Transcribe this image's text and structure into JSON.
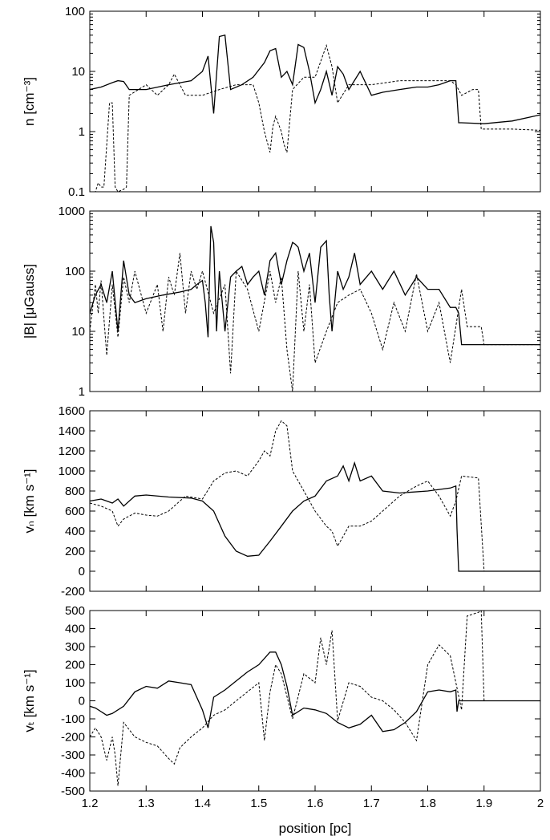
{
  "chart_data": [
    {
      "type": "line",
      "ylabel": "n [cm⁻³]",
      "yscale": "log",
      "ylim": [
        0.1,
        100
      ],
      "xlim": [
        1.2,
        2.0
      ],
      "yticks": [
        "0.1",
        "1",
        "10",
        "100"
      ],
      "grid": false,
      "series": [
        {
          "style": "solid",
          "x": [
            1.2,
            1.22,
            1.24,
            1.25,
            1.26,
            1.27,
            1.3,
            1.34,
            1.38,
            1.4,
            1.41,
            1.42,
            1.43,
            1.44,
            1.45,
            1.47,
            1.49,
            1.51,
            1.52,
            1.53,
            1.54,
            1.55,
            1.56,
            1.57,
            1.58,
            1.59,
            1.6,
            1.61,
            1.62,
            1.63,
            1.64,
            1.65,
            1.66,
            1.68,
            1.7,
            1.72,
            1.75,
            1.78,
            1.8,
            1.82,
            1.84,
            1.85,
            1.855,
            1.86,
            1.9,
            1.95,
            2.0
          ],
          "y": [
            5,
            5.5,
            6.5,
            7,
            6.8,
            5,
            5,
            6,
            7,
            10,
            18,
            2,
            38,
            40,
            5,
            6,
            8,
            14,
            22,
            24,
            8,
            10,
            6,
            28,
            25,
            10,
            3,
            5,
            10,
            4,
            12,
            9,
            5,
            10,
            4,
            4.5,
            5,
            5.5,
            5.5,
            6,
            7,
            7,
            1.4,
            1.4,
            1.35,
            1.5,
            1.9
          ]
        },
        {
          "style": "dashed",
          "x": [
            1.2,
            1.21,
            1.215,
            1.22,
            1.225,
            1.23,
            1.235,
            1.24,
            1.245,
            1.25,
            1.26,
            1.265,
            1.27,
            1.3,
            1.32,
            1.34,
            1.35,
            1.37,
            1.4,
            1.43,
            1.46,
            1.49,
            1.5,
            1.51,
            1.52,
            1.525,
            1.53,
            1.54,
            1.545,
            1.55,
            1.56,
            1.58,
            1.6,
            1.62,
            1.63,
            1.64,
            1.66,
            1.7,
            1.75,
            1.8,
            1.84,
            1.85,
            1.86,
            1.88,
            1.89,
            1.895,
            1.9,
            1.95,
            2.0
          ],
          "y": [
            0.1,
            0.1,
            0.14,
            0.12,
            0.12,
            0.6,
            3,
            3,
            0.12,
            0.1,
            0.11,
            0.12,
            4,
            6,
            4,
            6,
            9,
            4,
            4,
            5,
            6,
            6,
            3,
            1,
            0.45,
            1.2,
            1.8,
            1,
            0.6,
            0.45,
            5,
            8,
            8,
            27,
            12,
            3,
            6,
            6,
            7,
            7,
            7,
            6,
            4,
            5,
            5,
            1.1,
            1.1,
            1.1,
            1.05
          ]
        }
      ]
    },
    {
      "type": "line",
      "ylabel": "|B| [μGauss]",
      "yscale": "log",
      "ylim": [
        1,
        1000
      ],
      "xlim": [
        1.2,
        2.0
      ],
      "yticks": [
        "1",
        "10",
        "100",
        "1000"
      ],
      "grid": false,
      "series": [
        {
          "style": "solid",
          "x": [
            1.2,
            1.21,
            1.22,
            1.23,
            1.24,
            1.25,
            1.26,
            1.27,
            1.28,
            1.3,
            1.33,
            1.36,
            1.38,
            1.39,
            1.4,
            1.405,
            1.41,
            1.415,
            1.42,
            1.425,
            1.43,
            1.44,
            1.45,
            1.46,
            1.47,
            1.48,
            1.49,
            1.5,
            1.51,
            1.52,
            1.53,
            1.54,
            1.55,
            1.56,
            1.565,
            1.57,
            1.58,
            1.59,
            1.6,
            1.61,
            1.62,
            1.625,
            1.63,
            1.64,
            1.65,
            1.66,
            1.67,
            1.68,
            1.7,
            1.72,
            1.74,
            1.76,
            1.78,
            1.8,
            1.82,
            1.84,
            1.85,
            1.855,
            1.86,
            1.9,
            1.95,
            2.0
          ],
          "y": [
            20,
            40,
            60,
            30,
            100,
            10,
            150,
            40,
            30,
            35,
            40,
            45,
            50,
            60,
            70,
            30,
            8,
            560,
            300,
            10,
            100,
            10,
            80,
            100,
            120,
            60,
            80,
            100,
            40,
            150,
            200,
            60,
            150,
            300,
            280,
            250,
            100,
            200,
            30,
            250,
            320,
            40,
            10,
            100,
            50,
            80,
            200,
            60,
            100,
            50,
            100,
            40,
            80,
            50,
            50,
            25,
            25,
            20,
            6,
            6,
            6,
            6
          ]
        },
        {
          "style": "dashed",
          "x": [
            1.2,
            1.21,
            1.215,
            1.22,
            1.23,
            1.24,
            1.25,
            1.26,
            1.27,
            1.28,
            1.3,
            1.32,
            1.33,
            1.34,
            1.35,
            1.36,
            1.37,
            1.38,
            1.39,
            1.4,
            1.42,
            1.44,
            1.45,
            1.46,
            1.48,
            1.5,
            1.52,
            1.53,
            1.54,
            1.55,
            1.56,
            1.57,
            1.58,
            1.59,
            1.6,
            1.62,
            1.64,
            1.66,
            1.68,
            1.7,
            1.72,
            1.74,
            1.76,
            1.78,
            1.8,
            1.82,
            1.84,
            1.86,
            1.87,
            1.88,
            1.89,
            1.895,
            1.9,
            2.0
          ],
          "y": [
            10,
            60,
            20,
            70,
            4,
            60,
            8,
            80,
            30,
            100,
            20,
            60,
            10,
            80,
            40,
            200,
            20,
            100,
            50,
            100,
            20,
            60,
            2,
            100,
            50,
            10,
            100,
            30,
            80,
            5,
            1,
            100,
            10,
            60,
            3,
            10,
            30,
            40,
            50,
            20,
            5,
            30,
            10,
            90,
            10,
            30,
            3,
            50,
            12,
            12,
            12,
            12,
            6,
            6
          ]
        }
      ]
    },
    {
      "type": "line",
      "ylabel": "vₙ [km s⁻¹]",
      "ylim": [
        -200,
        1600
      ],
      "xlim": [
        1.2,
        2.0
      ],
      "yticks": [
        "-200",
        "0",
        "200",
        "400",
        "600",
        "800",
        "1000",
        "1200",
        "1400",
        "1600"
      ],
      "grid": false,
      "series": [
        {
          "style": "solid",
          "x": [
            1.2,
            1.22,
            1.24,
            1.25,
            1.26,
            1.28,
            1.3,
            1.34,
            1.38,
            1.4,
            1.42,
            1.44,
            1.46,
            1.48,
            1.5,
            1.52,
            1.54,
            1.56,
            1.58,
            1.6,
            1.62,
            1.64,
            1.65,
            1.66,
            1.67,
            1.68,
            1.7,
            1.72,
            1.75,
            1.8,
            1.84,
            1.85,
            1.852,
            1.855,
            1.9,
            2.0
          ],
          "y": [
            700,
            720,
            680,
            720,
            650,
            750,
            760,
            740,
            730,
            700,
            600,
            350,
            200,
            150,
            160,
            300,
            450,
            600,
            700,
            750,
            900,
            950,
            1050,
            900,
            1080,
            900,
            950,
            800,
            780,
            800,
            830,
            850,
            420,
            0,
            0,
            0
          ]
        },
        {
          "style": "dashed",
          "x": [
            1.2,
            1.22,
            1.24,
            1.25,
            1.26,
            1.28,
            1.3,
            1.32,
            1.34,
            1.37,
            1.4,
            1.42,
            1.44,
            1.46,
            1.48,
            1.5,
            1.51,
            1.52,
            1.53,
            1.54,
            1.55,
            1.56,
            1.58,
            1.6,
            1.62,
            1.63,
            1.64,
            1.66,
            1.68,
            1.7,
            1.72,
            1.75,
            1.78,
            1.8,
            1.82,
            1.84,
            1.85,
            1.86,
            1.89,
            1.895,
            1.9,
            2.0
          ],
          "y": [
            680,
            650,
            600,
            450,
            520,
            580,
            560,
            550,
            600,
            750,
            720,
            900,
            980,
            1000,
            950,
            1100,
            1200,
            1150,
            1400,
            1500,
            1450,
            1000,
            800,
            600,
            450,
            400,
            250,
            450,
            450,
            500,
            600,
            750,
            850,
            900,
            750,
            550,
            700,
            950,
            930,
            470,
            0,
            0
          ]
        }
      ]
    },
    {
      "type": "line",
      "ylabel": "vₜ [km s⁻¹]",
      "ylim": [
        -500,
        500
      ],
      "xlim": [
        1.2,
        2.0
      ],
      "xlabel": "position [pc]",
      "xticks": [
        "1.2",
        "1.3",
        "1.4",
        "1.5",
        "1.6",
        "1.7",
        "1.8",
        "1.9",
        "2"
      ],
      "yticks": [
        "-500",
        "-400",
        "-300",
        "-200",
        "-100",
        "0",
        "100",
        "200",
        "300",
        "400",
        "500"
      ],
      "grid": false,
      "series": [
        {
          "style": "solid",
          "x": [
            1.2,
            1.21,
            1.22,
            1.23,
            1.24,
            1.26,
            1.28,
            1.3,
            1.32,
            1.34,
            1.36,
            1.38,
            1.4,
            1.41,
            1.42,
            1.44,
            1.46,
            1.48,
            1.5,
            1.52,
            1.53,
            1.54,
            1.55,
            1.56,
            1.58,
            1.6,
            1.62,
            1.64,
            1.66,
            1.68,
            1.7,
            1.72,
            1.74,
            1.76,
            1.78,
            1.8,
            1.82,
            1.84,
            1.85,
            1.852,
            1.855,
            1.86,
            1.9,
            2.0
          ],
          "y": [
            -30,
            -40,
            -60,
            -80,
            -70,
            -30,
            50,
            80,
            70,
            110,
            100,
            90,
            -50,
            -150,
            20,
            60,
            110,
            160,
            200,
            270,
            270,
            200,
            80,
            -80,
            -40,
            -50,
            -70,
            -120,
            -150,
            -130,
            -80,
            -170,
            -160,
            -120,
            -60,
            50,
            60,
            50,
            60,
            -60,
            0,
            0,
            0,
            0
          ]
        },
        {
          "style": "dashed",
          "x": [
            1.2,
            1.21,
            1.22,
            1.23,
            1.24,
            1.245,
            1.25,
            1.255,
            1.26,
            1.28,
            1.3,
            1.32,
            1.34,
            1.35,
            1.36,
            1.38,
            1.4,
            1.42,
            1.44,
            1.46,
            1.48,
            1.5,
            1.51,
            1.52,
            1.53,
            1.54,
            1.56,
            1.58,
            1.6,
            1.61,
            1.62,
            1.63,
            1.64,
            1.66,
            1.68,
            1.7,
            1.72,
            1.74,
            1.76,
            1.78,
            1.8,
            1.82,
            1.84,
            1.86,
            1.87,
            1.88,
            1.89,
            1.895,
            1.9,
            2.0
          ],
          "y": [
            -200,
            -150,
            -200,
            -330,
            -200,
            -300,
            -470,
            -300,
            -120,
            -200,
            -230,
            -250,
            -320,
            -350,
            -260,
            -200,
            -150,
            -80,
            -50,
            0,
            50,
            100,
            -220,
            50,
            200,
            150,
            -100,
            150,
            100,
            350,
            200,
            390,
            -110,
            100,
            80,
            20,
            0,
            -50,
            -120,
            -220,
            200,
            310,
            250,
            -50,
            470,
            480,
            490,
            500,
            0,
            0
          ]
        }
      ]
    }
  ]
}
